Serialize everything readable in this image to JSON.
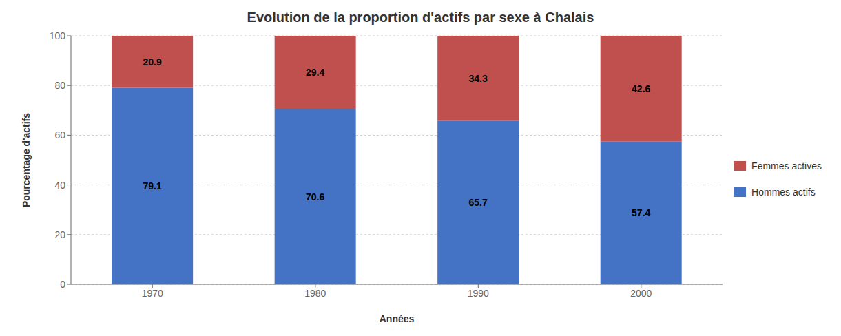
{
  "chart_data": {
    "type": "bar",
    "title": "Evolution de la proportion d'actifs par sexe à Chalais",
    "xlabel": "Années",
    "ylabel": "Pourcentage d'actifs",
    "categories": [
      "1970",
      "1980",
      "1990",
      "2000"
    ],
    "series": [
      {
        "name": "Hommes actifs",
        "color": "#4472C4",
        "values": [
          79.1,
          70.6,
          65.7,
          57.4
        ]
      },
      {
        "name": "Femmes actives",
        "color": "#C0504D",
        "values": [
          20.9,
          29.4,
          34.3,
          42.6
        ]
      }
    ],
    "ylim": [
      0,
      100
    ],
    "yticks": [
      0,
      20,
      40,
      60,
      80,
      100
    ],
    "grid": true,
    "stacked": true,
    "data_labels": true,
    "legend": "right"
  }
}
